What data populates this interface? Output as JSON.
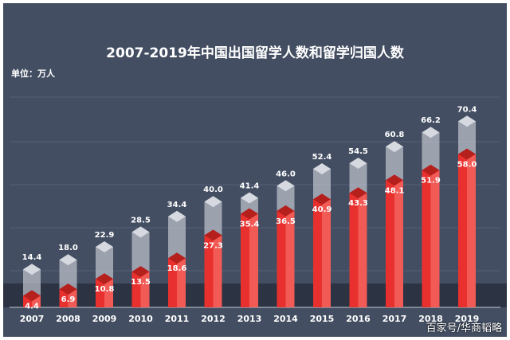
{
  "title": "2007-2019年中国出国留学人数和留学归国人数",
  "unit_label": "单位：万人",
  "watermark": "百家号/华商韬略",
  "colors": {
    "background": "#434e62",
    "outbound": "#b9bec8",
    "returned": "#e8312f"
  },
  "chart_data": {
    "type": "bar",
    "title": "2007-2019年中国出国留学人数和留学归国人数",
    "ylabel": "单位：万人",
    "categories": [
      "2007",
      "2008",
      "2009",
      "2010",
      "2011",
      "2012",
      "2013",
      "2014",
      "2015",
      "2016",
      "2017",
      "2018",
      "2019"
    ],
    "series": [
      {
        "values": [
          14.4,
          18.0,
          22.9,
          28.5,
          34.4,
          40.0,
          41.4,
          46.0,
          52.4,
          54.5,
          60.8,
          66.2,
          70.4
        ],
        "color": "#b9bec8"
      },
      {
        "values": [
          4.4,
          6.9,
          10.8,
          13.5,
          18.6,
          27.3,
          35.4,
          36.5,
          40.9,
          43.3,
          48.1,
          51.9,
          58.0
        ],
        "color": "#e8312f"
      }
    ],
    "overlap": true,
    "grid": true
  }
}
